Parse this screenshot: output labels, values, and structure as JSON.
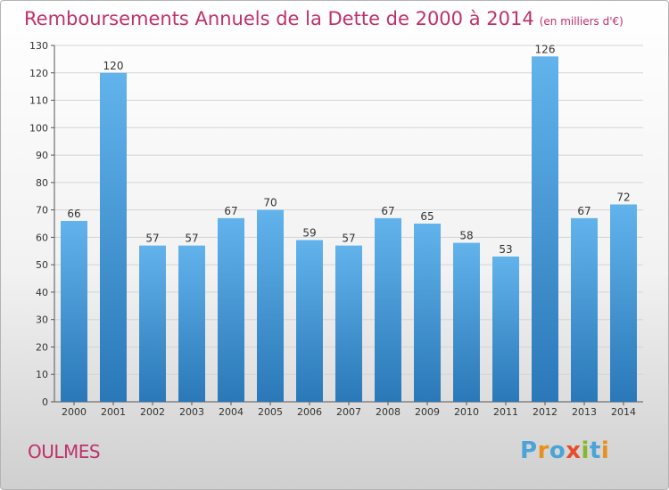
{
  "header": {
    "title": "Remboursements Annuels de la Dette de 2000 à 2014",
    "unit": "(en milliers d'€)"
  },
  "footer": {
    "commune": "OULMES",
    "logo_text": "Proxiti",
    "logo_colors": [
      "#4aa4d8",
      "#e8901c",
      "#4aa4d8",
      "#e84c2c",
      "#86b82c",
      "#4aa4d8",
      "#e8901c"
    ]
  },
  "colors": {
    "title": "#c0306a",
    "bar_top": "#62b3ec",
    "bar_bottom": "#2a78b8",
    "grid": "#d4d4d4"
  },
  "chart_data": {
    "type": "bar",
    "title": "Remboursements Annuels de la Dette de 2000 à 2014",
    "xlabel": "",
    "ylabel": "",
    "categories": [
      "2000",
      "2001",
      "2002",
      "2003",
      "2004",
      "2005",
      "2006",
      "2007",
      "2008",
      "2009",
      "2010",
      "2011",
      "2012",
      "2013",
      "2014"
    ],
    "values": [
      66,
      120,
      57,
      57,
      67,
      70,
      59,
      57,
      67,
      65,
      58,
      53,
      126,
      67,
      72
    ],
    "ylim": [
      0,
      130
    ],
    "yticks": [
      0,
      10,
      20,
      30,
      40,
      50,
      60,
      70,
      80,
      90,
      100,
      110,
      120,
      130
    ],
    "grid": true,
    "legend": "none"
  }
}
